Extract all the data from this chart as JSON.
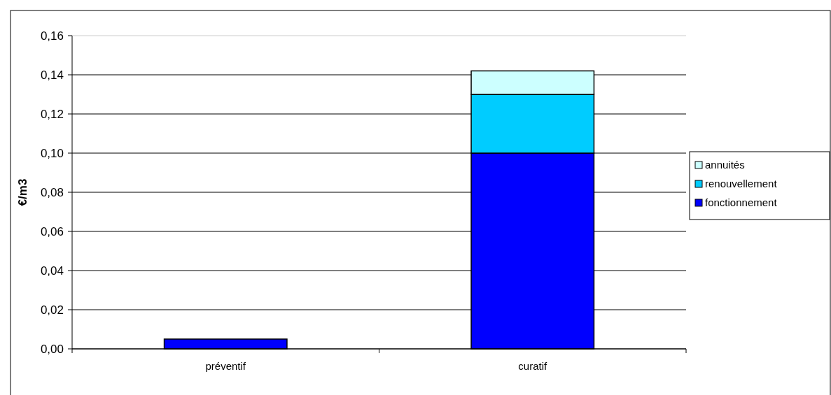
{
  "chart_data": {
    "type": "bar",
    "stacked": true,
    "ylabel": "€/m3",
    "categories": [
      "préventif",
      "curatif"
    ],
    "series": [
      {
        "name": "fonctionnement",
        "color": "#0000ff",
        "values": [
          0.005,
          0.1
        ]
      },
      {
        "name": "renouvellement",
        "color": "#00ccff",
        "values": [
          0,
          0.03
        ]
      },
      {
        "name": "annuités",
        "color": "#ccffff",
        "values": [
          0,
          0.012
        ]
      }
    ],
    "ylim": [
      0,
      0.16
    ],
    "yticks": [
      {
        "value": 0,
        "label": "0,00"
      },
      {
        "value": 0.02,
        "label": "0,02"
      },
      {
        "value": 0.04,
        "label": "0,04"
      },
      {
        "value": 0.06,
        "label": "0,06"
      },
      {
        "value": 0.08,
        "label": "0,08"
      },
      {
        "value": 0.1,
        "label": "0,10"
      },
      {
        "value": 0.12,
        "label": "0,12"
      },
      {
        "value": 0.14,
        "label": "0,14"
      },
      {
        "value": 0.16,
        "label": "0,16"
      }
    ],
    "grid": "y",
    "legend": "right"
  }
}
